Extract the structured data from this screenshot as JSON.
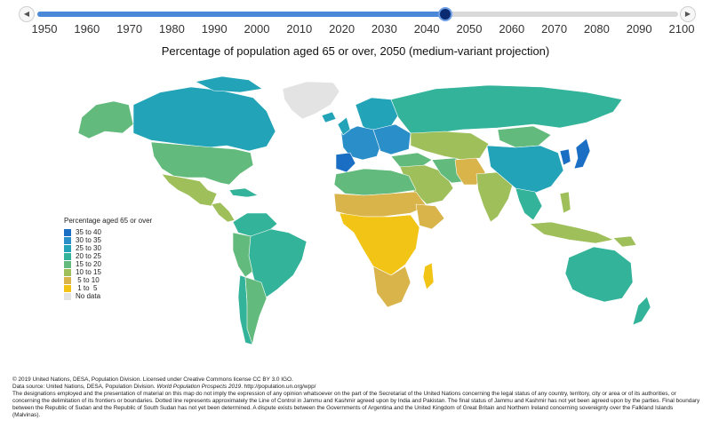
{
  "timeline": {
    "prev_icon": "◀",
    "next_icon": "▶",
    "years": [
      "1950",
      "1960",
      "1970",
      "1980",
      "1990",
      "2000",
      "2010",
      "2020",
      "2030",
      "2040",
      "2050",
      "2060",
      "2070",
      "2080",
      "2090",
      "2100"
    ],
    "selected_year": "2050",
    "selected_fraction": 0.6364
  },
  "title": "Percentage of population aged 65 or over, 2050 (medium-variant projection)",
  "legend": {
    "title": "Percentage aged 65 or over",
    "items": [
      {
        "label": "35 to 40",
        "color": "#1a6fc4"
      },
      {
        "label": "30 to 35",
        "color": "#2a8fc8"
      },
      {
        "label": "25 to 30",
        "color": "#22a3b8"
      },
      {
        "label": "20 to 25",
        "color": "#33b39a"
      },
      {
        "label": "15 to 20",
        "color": "#62ba7c"
      },
      {
        "label": "10 to 15",
        "color": "#9fbf5a"
      },
      {
        "label": " 5 to 10",
        "color": "#d9b44a"
      },
      {
        "label": " 1 to  5",
        "color": "#f2c416"
      },
      {
        "label": "No data",
        "color": "#e3e3e3"
      }
    ]
  },
  "footer": {
    "copyright": "© 2019 United Nations, DESA, Population Division. Licensed under Creative Commons license CC BY 3.0 IGO.",
    "source_prefix": "Data source: United Nations, DESA, Population Division. ",
    "source_title": "World Population Prospects 2019",
    "source_suffix": ". http://population.un.org/wpp/",
    "disclaimer": "The designations employed and the presentation of material on this map do not imply the expression of any opinion whatsoever on the part of the Secretariat of the United Nations concerning the legal status of any country, territory, city or area or of its authorities, or concerning the delimitation of its frontiers or boundaries. Dotted line represents approximately the Line of Control in Jammu and Kashmir agreed upon by India and Pakistan. The final status of Jammu and Kashmir has not yet been agreed upon by the parties. Final boundary between the Republic of Sudan and the Republic of South Sudan has not yet been determined. A dispute exists between the Governments of Argentina and the United Kingdom of Great Britain and Northern Ireland concerning sovereignty over the Falkland Islands (Malvinas)."
  }
}
